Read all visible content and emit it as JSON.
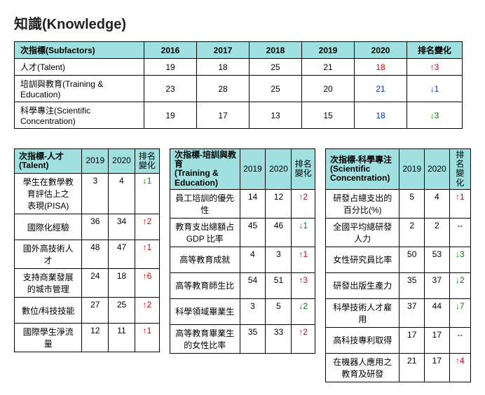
{
  "title": "知識(Knowledge)",
  "mainTable": {
    "headers": [
      "次指標(Subfactors)",
      "2016",
      "2017",
      "2018",
      "2019",
      "2020",
      "排名變化"
    ],
    "rows": [
      {
        "label": "人才(Talent)",
        "vals": [
          "19",
          "18",
          "25",
          "21"
        ],
        "last": {
          "text": "18",
          "cls": "red"
        },
        "change": {
          "text": "↑3",
          "cls": "red"
        }
      },
      {
        "label": "培訓與教育(Training & Education)",
        "vals": [
          "23",
          "28",
          "25",
          "20"
        ],
        "last": {
          "text": "21",
          "cls": "blue"
        },
        "change": {
          "text": "↓1",
          "cls": "blue"
        }
      },
      {
        "label": "科學專注(Scientific Concentration)",
        "vals": [
          "19",
          "17",
          "13",
          "15"
        ],
        "last": {
          "text": "18",
          "cls": "blue"
        },
        "change": {
          "text": "↓3",
          "cls": "green"
        }
      }
    ]
  },
  "subTables": [
    {
      "title1": "次指標-人才",
      "title2": "(Talent)",
      "cols": [
        "2019",
        "2020",
        "排名\n變化"
      ],
      "rows": [
        {
          "label": "學生在數學教育評估上之\n表現(PISA)",
          "a": "3",
          "b": "4",
          "c": {
            "text": "↓1",
            "cls": "green"
          }
        },
        {
          "label": "國際化經驗",
          "a": "36",
          "b": "34",
          "c": {
            "text": "↑2",
            "cls": "red"
          }
        },
        {
          "label": "國外高技術人才",
          "a": "48",
          "b": "47",
          "c": {
            "text": "↑1",
            "cls": "red"
          }
        },
        {
          "label": "支持商業發展的城市管理",
          "a": "24",
          "b": "18",
          "c": {
            "text": "↑6",
            "cls": "red"
          }
        },
        {
          "label": "數位/科技技能",
          "a": "27",
          "b": "25",
          "c": {
            "text": "↑2",
            "cls": "red"
          }
        },
        {
          "label": "國際學生淨流量",
          "a": "12",
          "b": "11",
          "c": {
            "text": "↑1",
            "cls": "red"
          }
        }
      ]
    },
    {
      "title1": "次指標-培訓與教育",
      "title2": "(Training & Education)",
      "cols": [
        "2019",
        "2020",
        "排名\n變化"
      ],
      "rows": [
        {
          "label": "員工培訓的優先性",
          "a": "14",
          "b": "12",
          "c": {
            "text": "↑2",
            "cls": "red"
          }
        },
        {
          "label": "教育支出總額占 GDP 比率",
          "a": "45",
          "b": "46",
          "c": {
            "text": "↓1",
            "cls": "green"
          }
        },
        {
          "label": "高等教育成就",
          "a": "4",
          "b": "3",
          "c": {
            "text": "↑1",
            "cls": "red"
          }
        },
        {
          "label": "高等教育師生比",
          "a": "54",
          "b": "51",
          "c": {
            "text": "↑3",
            "cls": "red"
          }
        },
        {
          "label": "科學領域畢業生",
          "a": "3",
          "b": "5",
          "c": {
            "text": "↓2",
            "cls": "green"
          }
        },
        {
          "label": "高等教育畢業生的女性比率",
          "a": "35",
          "b": "33",
          "c": {
            "text": "↑2",
            "cls": "red"
          }
        }
      ]
    },
    {
      "title1": "次指標-科學專注",
      "title2": "(Scientific\nConcentration)",
      "cols": [
        "2019",
        "2020",
        "排名\n變化"
      ],
      "rows": [
        {
          "label": "研發占總支出的百分比(%)",
          "a": "5",
          "b": "4",
          "c": {
            "text": "↑1",
            "cls": "red"
          }
        },
        {
          "label": "全國平均總研發人力",
          "a": "2",
          "b": "2",
          "c": {
            "text": "--",
            "cls": ""
          }
        },
        {
          "label": "女性研究員比率",
          "a": "50",
          "b": "53",
          "c": {
            "text": "↓3",
            "cls": "green"
          }
        },
        {
          "label": "研發出版生產力",
          "a": "35",
          "b": "37",
          "c": {
            "text": "↓2",
            "cls": "green"
          }
        },
        {
          "label": "科學技術人才雇用",
          "a": "37",
          "b": "44",
          "c": {
            "text": "↓7",
            "cls": "green"
          }
        },
        {
          "label": "高科技專利取得",
          "a": "17",
          "b": "17",
          "c": {
            "text": "--",
            "cls": ""
          }
        },
        {
          "label": "在機器人應用之教育及研發",
          "a": "21",
          "b": "17",
          "c": {
            "text": "↑4",
            "cls": "red"
          }
        }
      ]
    }
  ]
}
